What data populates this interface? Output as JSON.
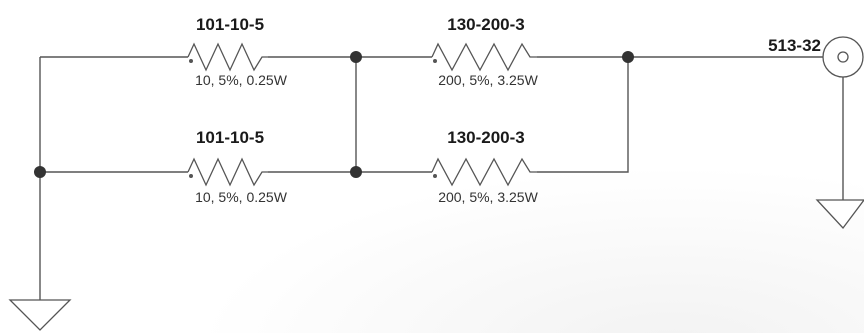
{
  "schematic": {
    "resistors": [
      {
        "part": "101-10-5",
        "value": "10, 5%, 0.25W"
      },
      {
        "part": "130-200-3",
        "value": "200, 5%, 3.25W"
      },
      {
        "part": "101-10-5",
        "value": "10, 5%, 0.25W"
      },
      {
        "part": "130-200-3",
        "value": "200, 5%, 3.25W"
      }
    ],
    "connector": {
      "part": "513-32"
    },
    "colors": {
      "wire": "#555555",
      "node": "#333333",
      "text": "#1a1a1a"
    }
  }
}
